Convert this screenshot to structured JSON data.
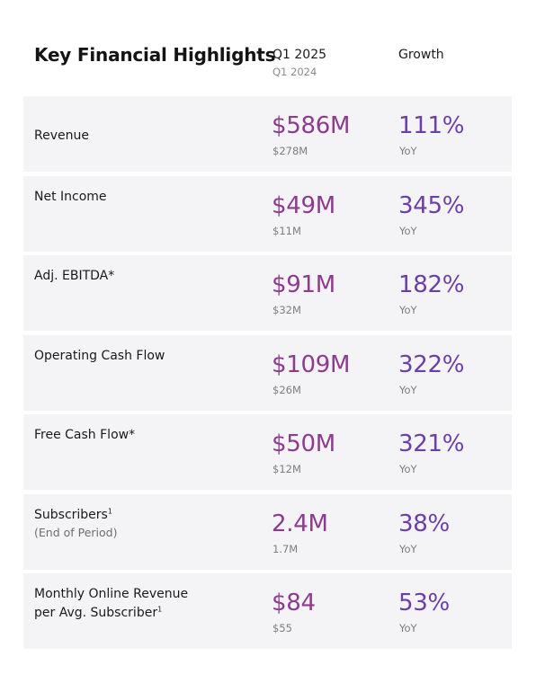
{
  "header": {
    "title": "Key Financial Highlights",
    "period_label": "Q1 2025",
    "compare_label": "Q1 2024",
    "growth_label": "Growth"
  },
  "rows": [
    {
      "label": "Revenue",
      "sublabel": "",
      "footnote": "",
      "value": "$586M",
      "prior": "$278M",
      "growth": "111%",
      "growth_note": "YoY"
    },
    {
      "label": "Net Income",
      "sublabel": "",
      "footnote": "",
      "value": "$49M",
      "prior": "$11M",
      "growth": "345%",
      "growth_note": "YoY"
    },
    {
      "label": "Adj. EBITDA*",
      "sublabel": "",
      "footnote": "",
      "value": "$91M",
      "prior": "$32M",
      "growth": "182%",
      "growth_note": "YoY"
    },
    {
      "label": "Operating Cash Flow",
      "sublabel": "",
      "footnote": "",
      "value": "$109M",
      "prior": "$26M",
      "growth": "322%",
      "growth_note": "YoY"
    },
    {
      "label": "Free Cash Flow*",
      "sublabel": "",
      "footnote": "",
      "value": "$50M",
      "prior": "$12M",
      "growth": "321%",
      "growth_note": "YoY"
    },
    {
      "label": "Subscribers",
      "sublabel": "(End of Period)",
      "footnote": "1",
      "value": "2.4M",
      "prior": "1.7M",
      "growth": "38%",
      "growth_note": "YoY"
    },
    {
      "label_line1": "Monthly Online Revenue",
      "label": "per Avg. Subscriber",
      "sublabel": "",
      "footnote": "1",
      "value": "$84",
      "prior": "$55",
      "growth": "53%",
      "growth_note": "YoY"
    }
  ],
  "colors": {
    "value": "#8d3b8f",
    "growth": "#6b3fa8",
    "row_bg": "#f4f3f6"
  }
}
